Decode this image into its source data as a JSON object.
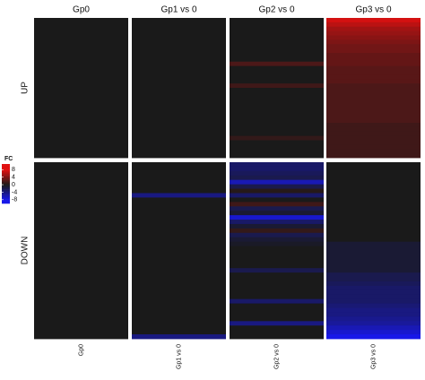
{
  "chart_data": {
    "type": "heatmap",
    "rows": [
      "UP",
      "DOWN"
    ],
    "columns": [
      {
        "label": "Gp0",
        "up": [
          0,
          0,
          0,
          0,
          0,
          0,
          0,
          0,
          0,
          0,
          0,
          0,
          0,
          0,
          0,
          0,
          0,
          0,
          0,
          0,
          0,
          0,
          0,
          0,
          0,
          0,
          0,
          0,
          0,
          0,
          0,
          0
        ],
        "down": [
          0,
          0,
          0,
          0,
          0,
          0,
          0,
          0,
          0,
          0,
          0,
          0,
          0,
          0,
          0,
          0,
          0,
          0,
          0,
          0,
          0,
          0,
          0,
          0,
          0,
          0,
          0,
          0,
          0,
          0,
          0,
          0,
          0,
          0,
          0,
          0,
          0,
          0,
          0,
          0
        ]
      },
      {
        "label": "Gp1 vs 0",
        "up": [
          0,
          0,
          0,
          0,
          0,
          0,
          0,
          0,
          0,
          0,
          0,
          0,
          0,
          0,
          0,
          0,
          0,
          0,
          0,
          0,
          0,
          0,
          0,
          0,
          0,
          0,
          0,
          0,
          0,
          0,
          0,
          0
        ],
        "down": [
          0,
          0,
          0,
          0,
          0,
          0,
          0,
          -4,
          0,
          0,
          0,
          0,
          0,
          0,
          0,
          0,
          0,
          0,
          0,
          0,
          0,
          0,
          0,
          0,
          0,
          0,
          0,
          0,
          0,
          0,
          0,
          0,
          0,
          0,
          0,
          0,
          0,
          0,
          0,
          -4
        ]
      },
      {
        "label": "Gp2 vs 0",
        "up": [
          0,
          0,
          0,
          0,
          0,
          0,
          0,
          0,
          0,
          0,
          2,
          0,
          0,
          0,
          0,
          1.5,
          0,
          0,
          0,
          0,
          0,
          0,
          0,
          0,
          0,
          0,
          0,
          1,
          0,
          0,
          0,
          0
        ],
        "down": [
          -3,
          -3,
          -2.5,
          -2,
          -6,
          -2,
          0.5,
          -3,
          0,
          1.5,
          -2,
          -1,
          -7,
          -3,
          -1,
          1,
          -2,
          -1,
          -0.5,
          0,
          0,
          0,
          0,
          0,
          -2,
          0,
          0,
          0,
          0,
          0,
          0,
          -3,
          0,
          0,
          0,
          0,
          -4,
          0,
          0,
          0
        ]
      },
      {
        "label": "Gp3 vs 0",
        "up": [
          7.5,
          6.5,
          5.5,
          5,
          4.5,
          4,
          3.5,
          3.5,
          3,
          3,
          3,
          2.5,
          2.5,
          2.5,
          2.5,
          2,
          2,
          2,
          2,
          2,
          2,
          2,
          2,
          2,
          1.5,
          1.5,
          1.5,
          1.5,
          1.5,
          1.5,
          1.5,
          1.5
        ],
        "down": [
          0,
          0,
          0,
          0,
          0,
          0,
          0,
          0,
          0,
          0,
          0,
          0,
          0,
          0,
          0,
          0,
          0,
          0,
          -1,
          -1,
          -1,
          -1,
          -1,
          -1,
          -1,
          -2,
          -2,
          -2.5,
          -3,
          -3,
          -3,
          -3,
          -3.5,
          -4,
          -4,
          -4.5,
          -5,
          -6,
          -7,
          -8
        ]
      }
    ],
    "legend_title": "FC",
    "legend_lim": [
      -10,
      11
    ],
    "legend_ticks": [
      8,
      4,
      0,
      -4,
      -8
    ],
    "colors": {
      "low": "#1818e8",
      "mid": "#1a1a1a",
      "high": "#e01010"
    }
  }
}
